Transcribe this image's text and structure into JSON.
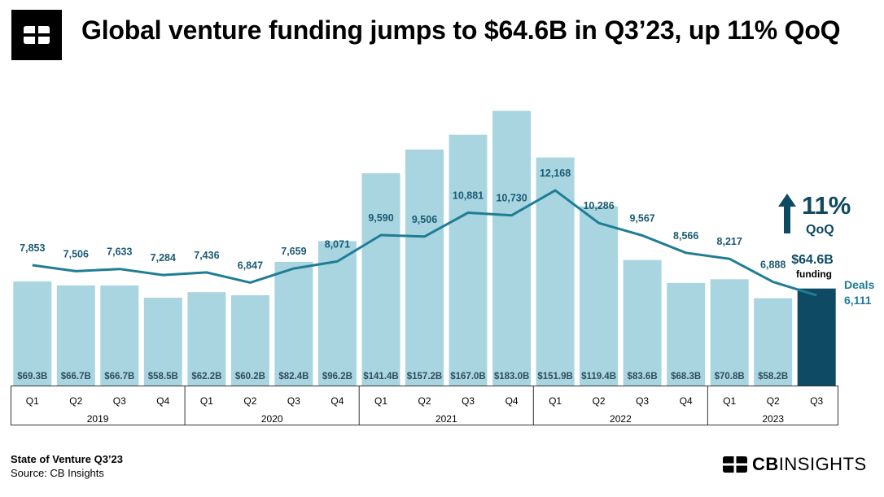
{
  "header": {
    "title": "Global venture funding jumps to $64.6B in Q3’23, up 11% QoQ"
  },
  "footer": {
    "report": "State of Venture Q3’23",
    "source": "Source: CB Insights",
    "brand_bold": "CB",
    "brand_light": "INSIGHTS"
  },
  "colors": {
    "bar": "#a8d5e0",
    "bar_highlight": "#0e4a63",
    "line": "#1f7d95",
    "dark_text": "#1b5a73"
  },
  "callout": {
    "percent": "11%",
    "qoq": "QoQ",
    "funding_value": "$64.6B",
    "funding_label": "funding",
    "deals_label": "Deals",
    "deals_value": "6,111"
  },
  "chart_data": {
    "type": "bar",
    "categories": [
      "Q1",
      "Q2",
      "Q3",
      "Q4",
      "Q1",
      "Q2",
      "Q3",
      "Q4",
      "Q1",
      "Q2",
      "Q3",
      "Q4",
      "Q1",
      "Q2",
      "Q3",
      "Q4",
      "Q1",
      "Q2",
      "Q3"
    ],
    "years": [
      {
        "label": "2019",
        "quarters": 4
      },
      {
        "label": "2020",
        "quarters": 4
      },
      {
        "label": "2021",
        "quarters": 4
      },
      {
        "label": "2022",
        "quarters": 4
      },
      {
        "label": "2023",
        "quarters": 3
      }
    ],
    "series": [
      {
        "type": "bar",
        "values": [
          69.3,
          66.7,
          66.7,
          58.5,
          62.2,
          60.2,
          82.4,
          96.2,
          141.4,
          157.2,
          167.0,
          183.0,
          151.9,
          119.4,
          83.6,
          68.3,
          70.8,
          58.2,
          64.6
        ],
        "labels": [
          "$69.3B",
          "$66.7B",
          "$66.7B",
          "$58.5B",
          "$62.2B",
          "$60.2B",
          "$82.4B",
          "$96.2B",
          "$141.4B",
          "$157.2B",
          "$167.0B",
          "$183.0B",
          "$151.9B",
          "$119.4B",
          "$83.6B",
          "$68.3B",
          "$70.8B",
          "$58.2B",
          ""
        ]
      },
      {
        "type": "line",
        "values": [
          7853,
          7506,
          7633,
          7284,
          7436,
          6847,
          7659,
          8071,
          9590,
          9506,
          10881,
          10730,
          12168,
          10286,
          9567,
          8566,
          8217,
          6888,
          6111
        ],
        "labels": [
          "7,853",
          "7,506",
          "7,633",
          "7,284",
          "7,436",
          "6,847",
          "7,659",
          "8,071",
          "9,590",
          "9,506",
          "10,881",
          "10,730",
          "12,168",
          "10,286",
          "9,567",
          "8,566",
          "8,217",
          "6,888",
          ""
        ]
      }
    ],
    "grid": false,
    "legend": "none"
  }
}
